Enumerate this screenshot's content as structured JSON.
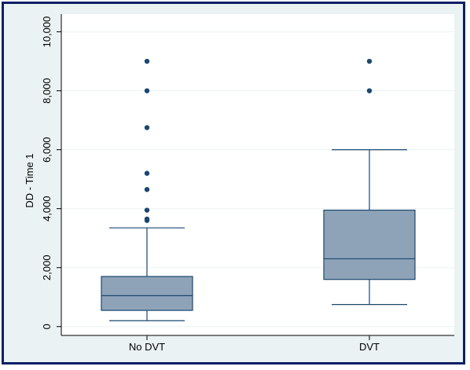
{
  "chart_data": {
    "type": "box",
    "title": "",
    "ylabel": "DD - Time 1",
    "xlabel": "",
    "ylim": [
      -300,
      10600
    ],
    "yticks": [
      0,
      2000,
      4000,
      6000,
      8000,
      10000
    ],
    "ytick_labels": [
      "0",
      "2,000",
      "4,000",
      "6,000",
      "8,000",
      "10,000"
    ],
    "grid": true,
    "categories": [
      "No DVT",
      "DVT"
    ],
    "boxes": [
      {
        "category": "No DVT",
        "whisker_low": 200,
        "q1": 550,
        "median": 1050,
        "q3": 1700,
        "whisker_high": 3350,
        "outliers": [
          3600,
          3650,
          3950,
          4650,
          5200,
          6750,
          8000,
          9000
        ]
      },
      {
        "category": "DVT",
        "whisker_low": 750,
        "q1": 1600,
        "median": 2300,
        "q3": 3950,
        "whisker_high": 6000,
        "outliers": [
          8000,
          9000
        ]
      }
    ],
    "colors": {
      "box_fill": "#8ea3b8",
      "box_stroke": "#1a476f",
      "outlier": "#1a476f",
      "frame": "#0c1f66",
      "outer_bg": "#eaf2f3",
      "plot_bg": "#ffffff"
    }
  }
}
